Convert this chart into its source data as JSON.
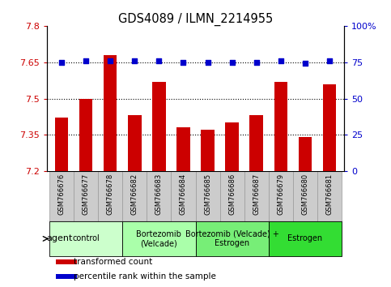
{
  "title": "GDS4089 / ILMN_2214955",
  "samples": [
    "GSM766676",
    "GSM766677",
    "GSM766678",
    "GSM766682",
    "GSM766683",
    "GSM766684",
    "GSM766685",
    "GSM766686",
    "GSM766687",
    "GSM766679",
    "GSM766680",
    "GSM766681"
  ],
  "bar_values": [
    7.42,
    7.5,
    7.68,
    7.43,
    7.57,
    7.38,
    7.37,
    7.4,
    7.43,
    7.57,
    7.34,
    7.56
  ],
  "dot_values": [
    75,
    76,
    76,
    76,
    76,
    75,
    75,
    75,
    75,
    76,
    74,
    76
  ],
  "ylim_left": [
    7.2,
    7.8
  ],
  "ylim_right": [
    0,
    100
  ],
  "yticks_left": [
    7.2,
    7.35,
    7.5,
    7.65,
    7.8
  ],
  "ytick_labels_left": [
    "7.2",
    "7.35",
    "7.5",
    "7.65",
    "7.8"
  ],
  "yticks_right": [
    0,
    25,
    50,
    75,
    100
  ],
  "ytick_labels_right": [
    "0",
    "25",
    "50",
    "75",
    "100%"
  ],
  "bar_color": "#cc0000",
  "dot_color": "#0000cc",
  "hline_values": [
    7.35,
    7.5,
    7.65
  ],
  "groups": [
    {
      "label": "control",
      "start": 0,
      "end": 3,
      "color": "#ccffcc"
    },
    {
      "label": "Bortezomib\n(Velcade)",
      "start": 3,
      "end": 6,
      "color": "#aaffaa"
    },
    {
      "label": "Bortezomib (Velcade) +\nEstrogen",
      "start": 6,
      "end": 9,
      "color": "#77ee77"
    },
    {
      "label": "Estrogen",
      "start": 9,
      "end": 12,
      "color": "#33dd33"
    }
  ],
  "legend_items": [
    {
      "color": "#cc0000",
      "label": "transformed count"
    },
    {
      "color": "#0000cc",
      "label": "percentile rank within the sample"
    }
  ],
  "agent_label": "agent",
  "tick_box_color": "#cccccc",
  "tick_box_edge": "#999999"
}
